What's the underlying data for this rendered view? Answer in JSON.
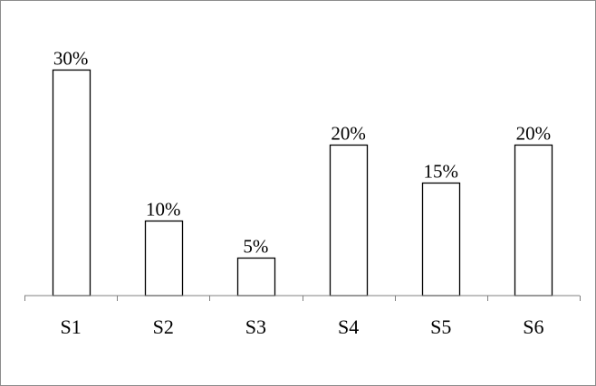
{
  "chart_data": {
    "type": "bar",
    "categories": [
      "S1",
      "S2",
      "S3",
      "S4",
      "S5",
      "S6"
    ],
    "values": [
      30,
      10,
      5,
      20,
      15,
      20
    ],
    "data_labels": [
      "30%",
      "10%",
      "5%",
      "20%",
      "15%",
      "20%"
    ],
    "unit": "%",
    "title": "",
    "xlabel": "",
    "ylabel": "",
    "ylim": [
      0,
      30
    ],
    "grid": false,
    "legend": "none",
    "bar_fill": "#ffffff",
    "bar_stroke": "#000000"
  }
}
